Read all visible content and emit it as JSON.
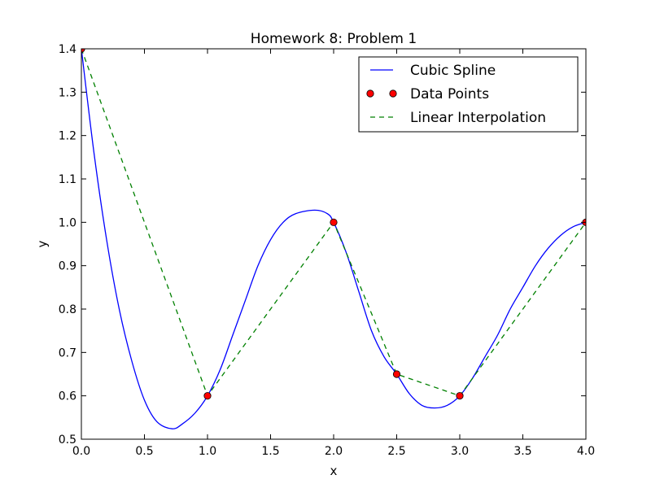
{
  "chart_data": {
    "type": "line",
    "title": "Homework 8: Problem 1",
    "xlabel": "x",
    "ylabel": "y",
    "xlim": [
      0.0,
      4.0
    ],
    "ylim": [
      0.5,
      1.4
    ],
    "x_ticks": [
      "0.0",
      "0.5",
      "1.0",
      "1.5",
      "2.0",
      "2.5",
      "3.0",
      "3.5",
      "4.0"
    ],
    "y_ticks": [
      "0.5",
      "0.6",
      "0.7",
      "0.8",
      "0.9",
      "1.0",
      "1.1",
      "1.2",
      "1.3",
      "1.4"
    ],
    "grid": false,
    "legend_position": "top-right",
    "series": [
      {
        "name": "Cubic Spline",
        "style": "solid line",
        "color": "#0000ff",
        "x": [
          0.0,
          0.1,
          0.2,
          0.3,
          0.4,
          0.5,
          0.6,
          0.72,
          0.8,
          0.9,
          1.0,
          1.1,
          1.2,
          1.3,
          1.4,
          1.5,
          1.6,
          1.7,
          1.85,
          1.95,
          2.0,
          2.1,
          2.2,
          2.3,
          2.4,
          2.5,
          2.6,
          2.7,
          2.8,
          2.9,
          3.0,
          3.1,
          3.2,
          3.3,
          3.4,
          3.5,
          3.6,
          3.7,
          3.8,
          3.9,
          4.0
        ],
        "y": [
          1.4,
          1.16,
          0.96,
          0.8,
          0.68,
          0.59,
          0.54,
          0.524,
          0.535,
          0.56,
          0.6,
          0.66,
          0.74,
          0.82,
          0.9,
          0.96,
          1.0,
          1.02,
          1.028,
          1.02,
          1.0,
          0.93,
          0.84,
          0.75,
          0.69,
          0.65,
          0.605,
          0.578,
          0.572,
          0.578,
          0.6,
          0.64,
          0.69,
          0.74,
          0.8,
          0.85,
          0.9,
          0.94,
          0.97,
          0.99,
          1.0
        ]
      },
      {
        "name": "Data Points",
        "style": "markers",
        "color": "#ff0000",
        "x": [
          0.0,
          1.0,
          2.0,
          2.5,
          3.0,
          4.0
        ],
        "y": [
          1.4,
          0.6,
          1.0,
          0.65,
          0.6,
          1.0
        ]
      },
      {
        "name": "Linear Interpolation",
        "style": "dashed line",
        "color": "#008000",
        "x": [
          0.0,
          1.0,
          2.0,
          2.5,
          3.0,
          4.0
        ],
        "y": [
          1.4,
          0.6,
          1.0,
          0.65,
          0.6,
          1.0
        ]
      }
    ]
  }
}
